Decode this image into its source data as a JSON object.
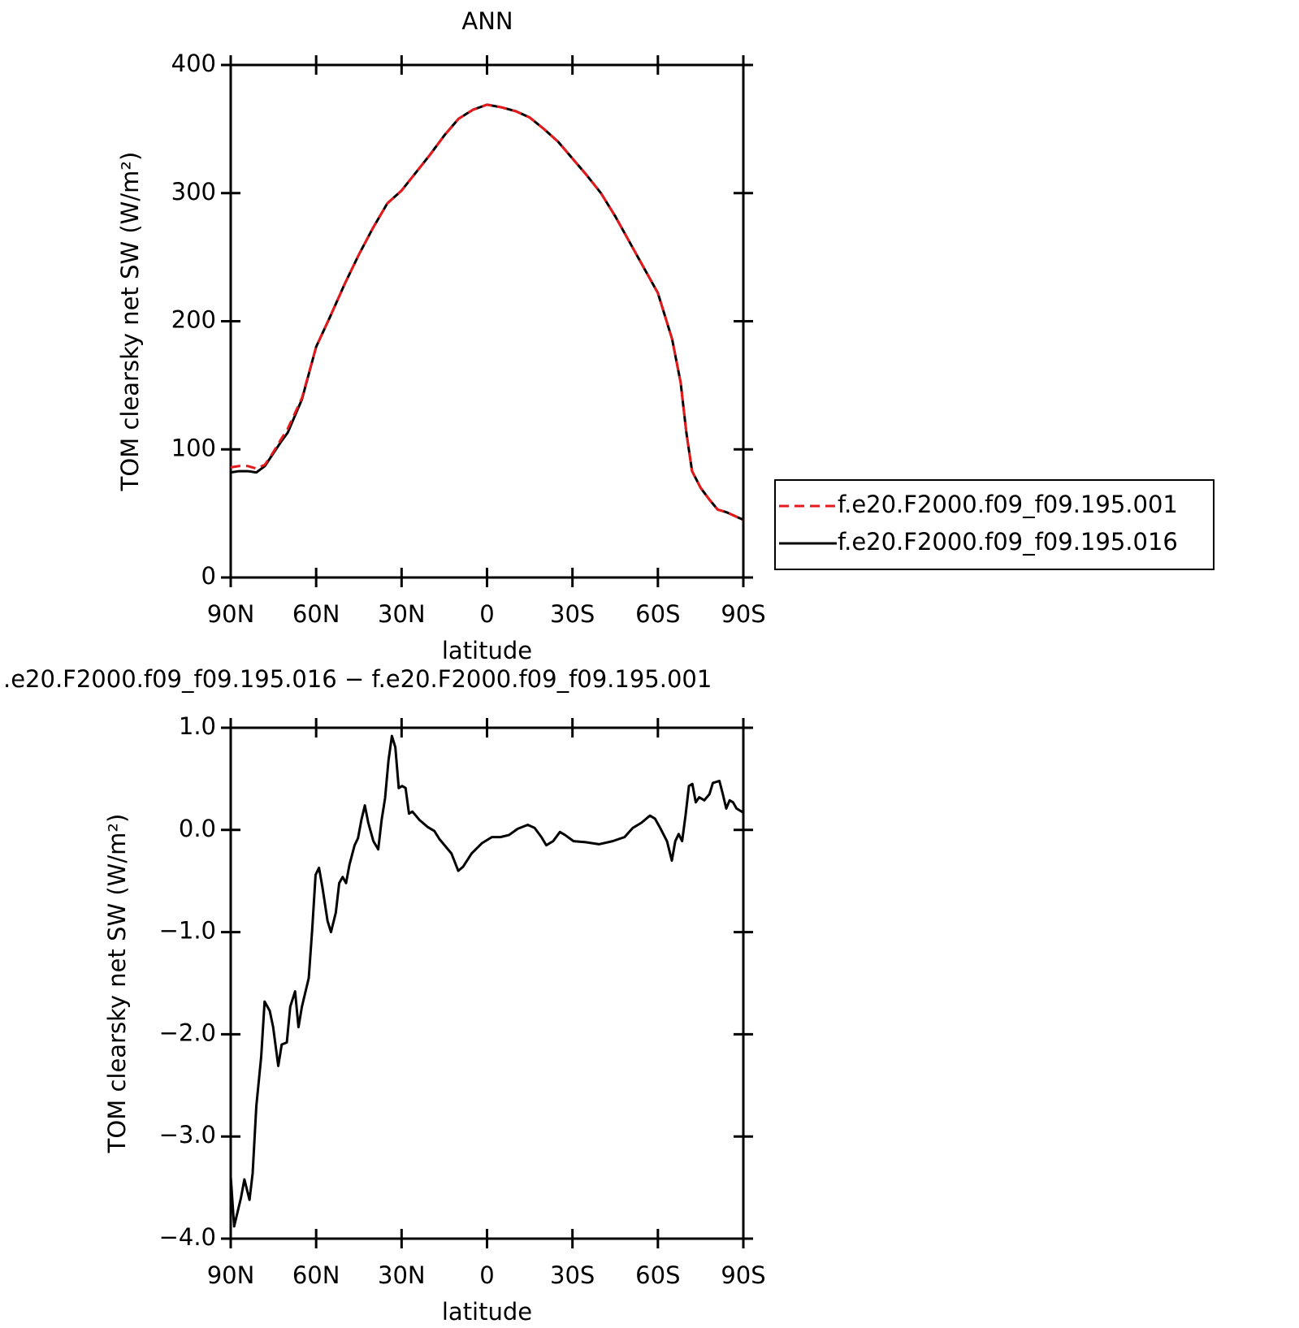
{
  "chart_data": [
    {
      "type": "line",
      "title": "ANN",
      "xlabel": "latitude",
      "ylabel": "TOM clearsky net SW (W/m²)",
      "x": [
        90,
        87,
        84,
        81,
        78,
        75,
        72,
        70,
        65,
        60,
        55,
        50,
        45,
        40,
        35,
        30,
        25,
        20,
        15,
        10,
        5,
        0,
        -5,
        -10,
        -15,
        -20,
        -25,
        -30,
        -35,
        -40,
        -45,
        -50,
        -55,
        -60,
        -65,
        -68,
        -70,
        -72,
        -75,
        -78,
        -81,
        -84,
        -87,
        -90
      ],
      "series": [
        {
          "name": "f.e20.F2000.f09_f09.195.001",
          "color": "#e41a1c",
          "line_style": "dashed",
          "values": [
            86,
            87,
            87,
            85,
            88,
            98,
            109,
            116,
            140,
            180,
            204,
            229,
            252,
            273,
            292,
            302,
            316,
            330,
            345,
            358,
            365,
            369,
            367,
            364,
            359,
            350,
            340,
            327,
            314,
            300,
            282,
            262,
            242,
            222,
            186,
            152,
            113,
            83,
            70,
            61,
            53,
            51,
            48,
            45
          ]
        },
        {
          "name": "f.e20.F2000.f09_f09.195.016",
          "color": "#000000",
          "line_style": "solid",
          "values": [
            82,
            83,
            83,
            82,
            87,
            97,
            107,
            113,
            139,
            180,
            204,
            229,
            252,
            273,
            292,
            302,
            316,
            330,
            345,
            358,
            365,
            369,
            367,
            364,
            359,
            350,
            340,
            327,
            314,
            300,
            282,
            262,
            242,
            222,
            186,
            152,
            113,
            83,
            70,
            61,
            53,
            51,
            48,
            45
          ]
        }
      ],
      "xlim": [
        90,
        -90
      ],
      "xticks": [
        {
          "value": 90,
          "label": "90N"
        },
        {
          "value": 60,
          "label": "60N"
        },
        {
          "value": 30,
          "label": "30N"
        },
        0,
        {
          "value": -30,
          "label": "30S"
        },
        {
          "value": -60,
          "label": "60S"
        },
        {
          "value": -90,
          "label": "90S"
        }
      ],
      "ylim": [
        0,
        400
      ],
      "yticks": [
        0,
        100,
        200,
        300,
        400
      ],
      "legend": "right"
    },
    {
      "type": "line",
      "title": ".e20.F2000.f09_f09.195.016 − f.e20.F2000.f09_f09.195.001",
      "xlabel": "latitude",
      "ylabel": "TOM clearsky net SW (W/m²)",
      "x": [
        90,
        88.8,
        86.4,
        85.2,
        83.4,
        82.3,
        81,
        79.3,
        78.1,
        76.3,
        75.1,
        73.3,
        72.1,
        70.3,
        69.1,
        67.4,
        66.2,
        65,
        62.6,
        61.4,
        60.2,
        59,
        57.8,
        56,
        54.8,
        53.1,
        51.9,
        50.7,
        49.5,
        48.3,
        46.5,
        45.3,
        44.1,
        42.9,
        41.7,
        39.9,
        38.2,
        37,
        35.8,
        34.6,
        33.4,
        32.2,
        31,
        29.8,
        28.6,
        27.4,
        26.2,
        23.8,
        20.9,
        18.5,
        16.7,
        14.9,
        12.5,
        10.1,
        8.4,
        5.4,
        1.8,
        -1.7,
        -4.7,
        -7.7,
        -10.7,
        -14.3,
        -16.7,
        -19.1,
        -20.8,
        -23.2,
        -25.6,
        -27.4,
        -30.4,
        -34.6,
        -39.3,
        -44.1,
        -48.3,
        -51.2,
        -54.2,
        -57.2,
        -59,
        -60.8,
        -63.2,
        -64.9,
        -66.1,
        -67.3,
        -68.5,
        -69.7,
        -70.9,
        -72.1,
        -73.3,
        -74.5,
        -76.3,
        -78.1,
        -79.3,
        -81.6,
        -82.8,
        -84,
        -85.2,
        -86.4,
        -87.6,
        -90
      ],
      "series": [
        {
          "color": "#000000",
          "line_style": "solid",
          "values": [
            -3.39,
            -3.88,
            -3.6,
            -3.42,
            -3.62,
            -3.36,
            -2.7,
            -2.22,
            -1.68,
            -1.77,
            -1.93,
            -2.31,
            -2.1,
            -2.08,
            -1.73,
            -1.58,
            -1.93,
            -1.73,
            -1.45,
            -0.98,
            -0.44,
            -0.37,
            -0.56,
            -0.89,
            -1.0,
            -0.81,
            -0.52,
            -0.46,
            -0.52,
            -0.34,
            -0.15,
            -0.08,
            0.1,
            0.24,
            0.07,
            -0.11,
            -0.19,
            0.1,
            0.31,
            0.68,
            0.92,
            0.81,
            0.41,
            0.43,
            0.41,
            0.16,
            0.18,
            0.1,
            0.03,
            -0.01,
            -0.09,
            -0.15,
            -0.23,
            -0.4,
            -0.36,
            -0.23,
            -0.13,
            -0.07,
            -0.07,
            -0.05,
            0.01,
            0.05,
            0.02,
            -0.07,
            -0.15,
            -0.11,
            -0.02,
            -0.05,
            -0.11,
            -0.12,
            -0.14,
            -0.11,
            -0.07,
            0.02,
            0.07,
            0.14,
            0.11,
            0.02,
            -0.11,
            -0.3,
            -0.11,
            -0.04,
            -0.11,
            0.14,
            0.43,
            0.45,
            0.27,
            0.32,
            0.29,
            0.35,
            0.46,
            0.48,
            0.35,
            0.21,
            0.29,
            0.27,
            0.21,
            0.17
          ]
        }
      ],
      "xlim": [
        90,
        -90
      ],
      "xticks": [
        {
          "value": 90,
          "label": "90N"
        },
        {
          "value": 60,
          "label": "60N"
        },
        {
          "value": 30,
          "label": "30N"
        },
        0,
        {
          "value": -30,
          "label": "30S"
        },
        {
          "value": -60,
          "label": "60S"
        },
        {
          "value": -90,
          "label": "90S"
        }
      ],
      "ylim": [
        -4,
        1
      ],
      "yticks": [
        {
          "value": -4,
          "label": "−4.0"
        },
        {
          "value": -3,
          "label": "−3.0"
        },
        {
          "value": -2,
          "label": "−2.0"
        },
        {
          "value": -1,
          "label": "−1.0"
        },
        {
          "value": 0,
          "label": "0.0"
        },
        {
          "value": 1,
          "label": "1.0"
        }
      ]
    }
  ]
}
